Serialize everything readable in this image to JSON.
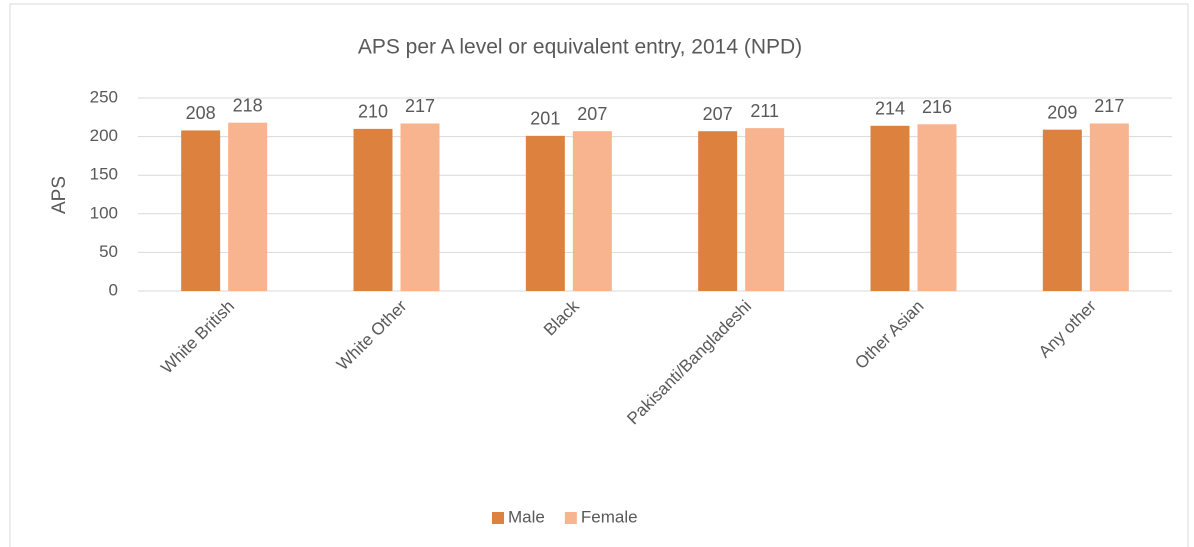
{
  "chart_data": {
    "type": "bar",
    "title": "APS per A level or equivalent entry, 2014 (NPD)",
    "y_label": "APS",
    "categories": [
      "White British",
      "White Other",
      "Black",
      "Pakisanti/Bangladeshi",
      "Other Asian",
      "Any other"
    ],
    "series": [
      {
        "name": "Male",
        "color": "#dc823e",
        "values": [
          208,
          210,
          201,
          207,
          214,
          209
        ]
      },
      {
        "name": "Female",
        "color": "#f8b48e",
        "values": [
          218,
          217,
          207,
          211,
          216,
          217
        ]
      }
    ],
    "ylim": [
      0,
      250
    ],
    "yticks": [
      0,
      50,
      100,
      150,
      200,
      250
    ],
    "grid": true,
    "legend": "bottom"
  }
}
